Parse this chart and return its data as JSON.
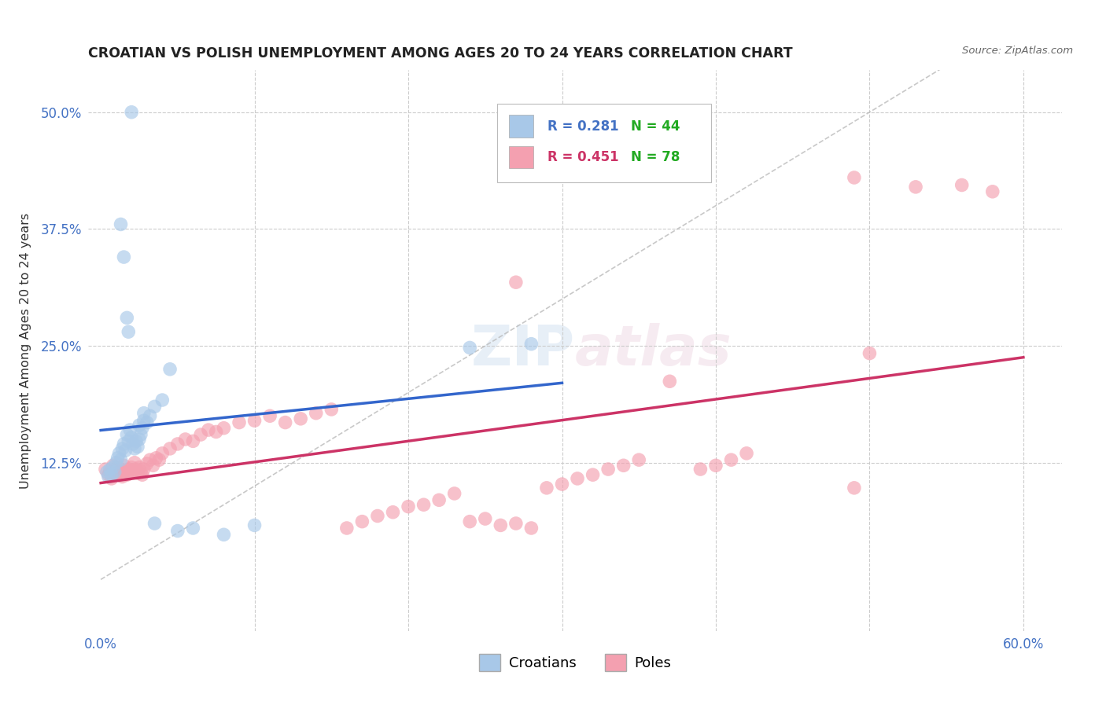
{
  "title": "CROATIAN VS POLISH UNEMPLOYMENT AMONG AGES 20 TO 24 YEARS CORRELATION CHART",
  "source": "Source: ZipAtlas.com",
  "ylabel": "Unemployment Among Ages 20 to 24 years",
  "color_croatian": "#a8c8e8",
  "color_polish": "#f4a0b0",
  "color_trendline_croatian": "#3366cc",
  "color_trendline_polish": "#cc3366",
  "color_diagonal": "#bbbbbb",
  "background_color": "#ffffff",
  "grid_color": "#cccccc",
  "legend_r1": "R = 0.281",
  "legend_n1": "N = 44",
  "legend_r2": "R = 0.451",
  "legend_n2": "N = 78"
}
